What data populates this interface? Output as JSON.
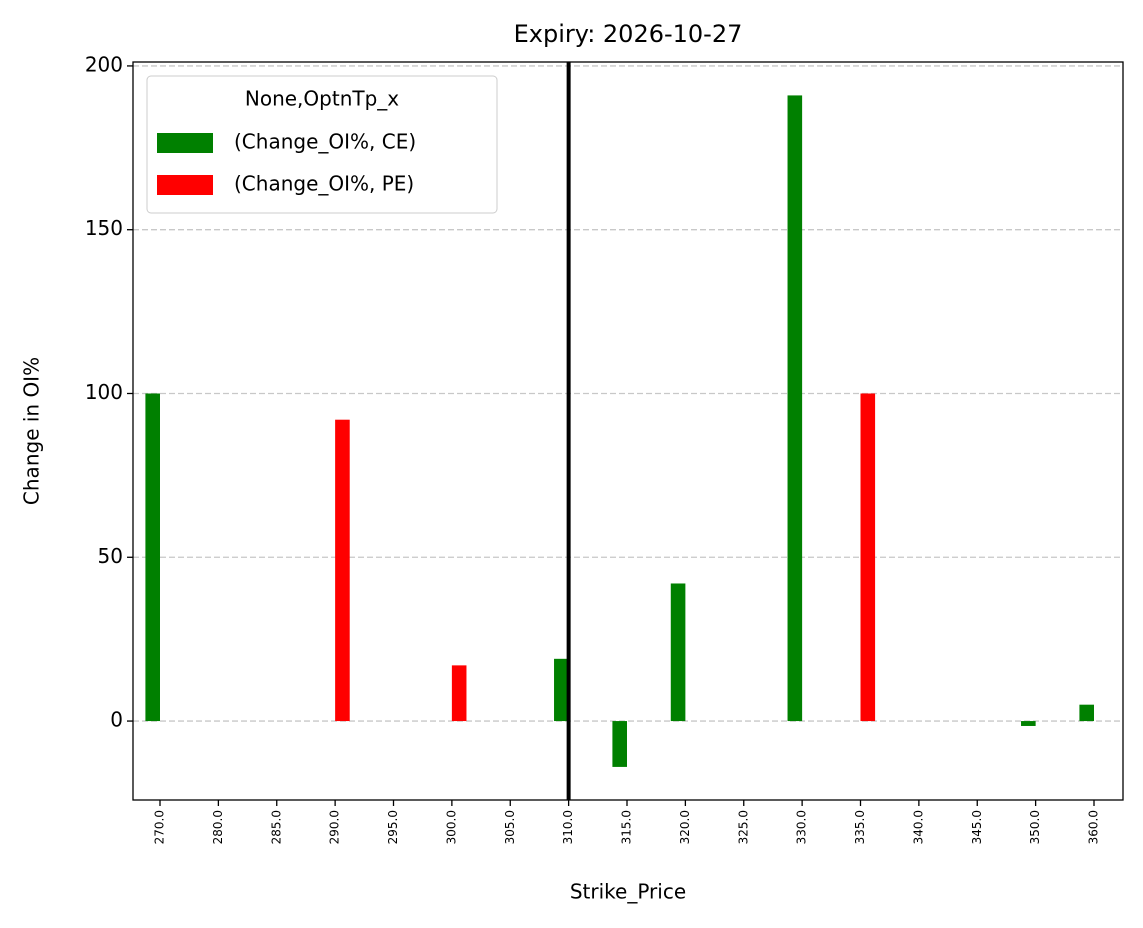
{
  "chart_data": {
    "type": "bar",
    "title": "Expiry: 2026-10-27",
    "x_label": "Strike_Price",
    "y_label": "Change in OI%",
    "categories": [
      "270.0",
      "280.0",
      "285.0",
      "290.0",
      "295.0",
      "300.0",
      "305.0",
      "310.0",
      "315.0",
      "320.0",
      "325.0",
      "330.0",
      "335.0",
      "340.0",
      "345.0",
      "350.0",
      "360.0"
    ],
    "series": [
      {
        "name": "(Change_OI%, CE)",
        "color": "#008000",
        "values": [
          100,
          null,
          null,
          null,
          null,
          null,
          null,
          19,
          -14,
          42,
          null,
          191,
          null,
          null,
          null,
          -1.5,
          5
        ]
      },
      {
        "name": "(Change_OI%, PE)",
        "color": "#ff0000",
        "values": [
          null,
          null,
          null,
          92,
          null,
          17,
          null,
          null,
          null,
          null,
          null,
          null,
          100,
          null,
          null,
          null,
          null
        ]
      }
    ],
    "legend_title": "None,OptnTp_x",
    "legend": "upper left",
    "ylim": [
      -24.1,
      201.2
    ],
    "yticks": [
      0,
      50,
      100,
      150,
      200
    ],
    "grid": true,
    "vline": "310.0",
    "vline_color": "#000000"
  }
}
